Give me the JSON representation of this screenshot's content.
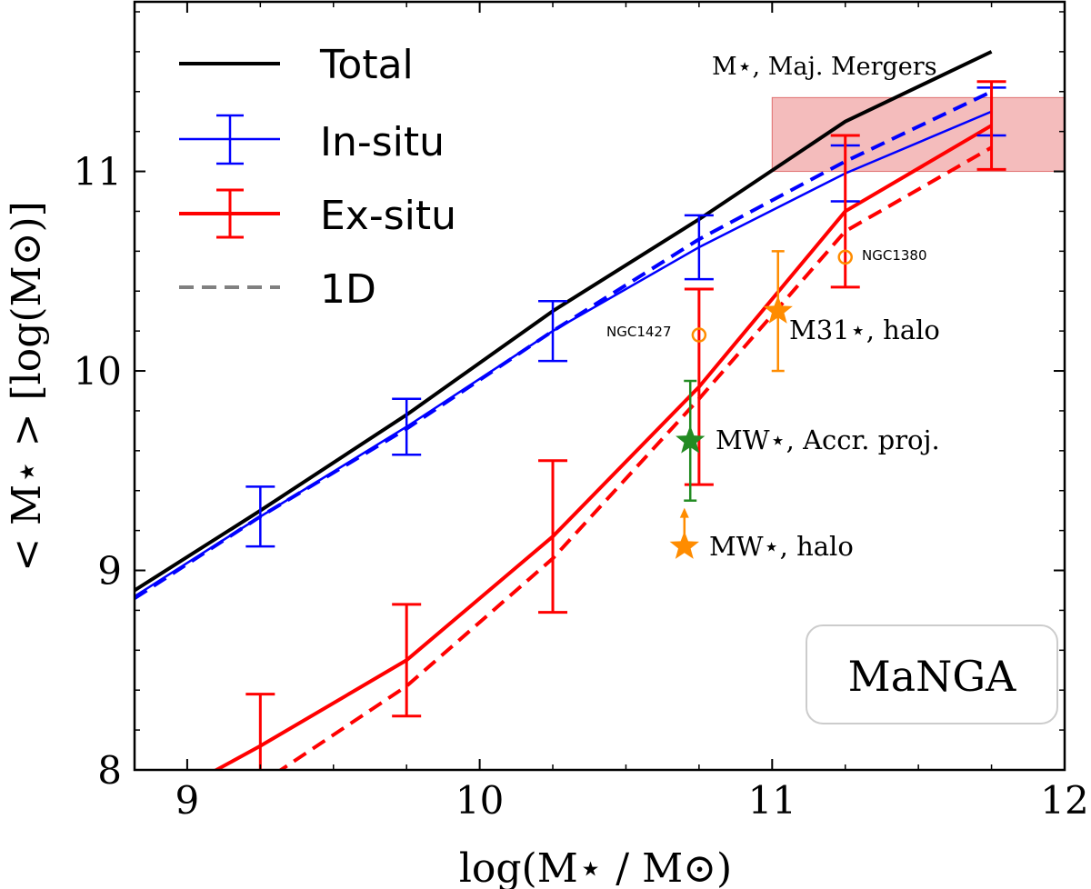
{
  "chart_data": {
    "type": "line",
    "xlabel": "log(M⋆ / M⊙)",
    "ylabel": "< M⋆ > [log(M⊙)]",
    "xlim": [
      8.82,
      12.0
    ],
    "ylim": [
      8.0,
      11.85
    ],
    "x_ticks": [
      "9",
      "10",
      "11",
      "12"
    ],
    "y_ticks": [
      "8",
      "9",
      "10",
      "11"
    ],
    "x_tick_values": [
      9,
      10,
      11,
      12
    ],
    "y_tick_values": [
      8,
      9,
      10,
      11
    ],
    "grid": false,
    "legend_position": "top-left",
    "legend": {
      "total": "Total",
      "insitu": "In-situ",
      "exsitu": "Ex-situ",
      "oned": "1D"
    },
    "panel_label": "MaNGA",
    "colors": {
      "total": "#000000",
      "insitu": "#0000ff",
      "exsitu": "#ff0000",
      "orange": "#ff8c00",
      "green": "#228b22",
      "region": "#f0a0a0",
      "oned_legend": "#808080"
    },
    "series": [
      {
        "name": "Total",
        "x": [
          8.82,
          9.25,
          9.75,
          10.25,
          10.75,
          11.25,
          11.75
        ],
        "y": [
          8.9,
          9.3,
          9.78,
          10.3,
          10.76,
          11.25,
          11.6
        ]
      },
      {
        "name": "In-situ",
        "x": [
          8.82,
          9.25,
          9.75,
          10.25,
          10.75,
          11.25,
          11.75
        ],
        "y": [
          8.87,
          9.27,
          9.72,
          10.2,
          10.62,
          10.99,
          11.3
        ],
        "errors": [
          null,
          0.15,
          0.14,
          0.15,
          0.16,
          0.14,
          0.12
        ]
      },
      {
        "name": "Ex-situ",
        "x": [
          9.0,
          9.25,
          9.75,
          10.25,
          10.75,
          11.25,
          11.75
        ],
        "y": [
          7.92,
          8.12,
          8.55,
          9.17,
          9.92,
          10.8,
          11.23
        ],
        "errors": [
          null,
          0.26,
          0.28,
          0.38,
          0.49,
          0.38,
          0.22
        ]
      },
      {
        "name": "In-situ 1D",
        "x": [
          8.82,
          9.25,
          9.75,
          10.25,
          10.75,
          11.25,
          11.75
        ],
        "y": [
          8.86,
          9.27,
          9.71,
          10.2,
          10.66,
          11.05,
          11.4
        ]
      },
      {
        "name": "Ex-situ 1D",
        "x": [
          9.3,
          9.75,
          10.25,
          10.75,
          11.25,
          11.75
        ],
        "y": [
          7.98,
          8.42,
          9.06,
          9.86,
          10.7,
          11.12
        ]
      }
    ],
    "region": {
      "label": "M⋆, Maj. Mergers",
      "x": [
        11.0,
        12.0
      ],
      "y": [
        11.0,
        11.37
      ]
    },
    "annotations": [
      {
        "label": "NGC1380",
        "marker": "open-circle",
        "x": 11.25,
        "y": 10.57
      },
      {
        "label": "NGC1427",
        "marker": "open-circle",
        "x": 10.75,
        "y": 10.18
      },
      {
        "label": "M31⋆, halo",
        "marker": "star",
        "x": 11.02,
        "y": 10.3,
        "err_low": 10.0,
        "err_high": 10.6
      },
      {
        "label": "MW⋆, Accr. proj.",
        "marker": "star",
        "x": 10.72,
        "y": 9.65,
        "err_low": 9.35,
        "err_high": 9.95
      },
      {
        "label": "MW⋆, halo",
        "marker": "star-lower-limit",
        "x": 10.7,
        "y": 9.12,
        "arrow_to": 9.3
      }
    ]
  }
}
